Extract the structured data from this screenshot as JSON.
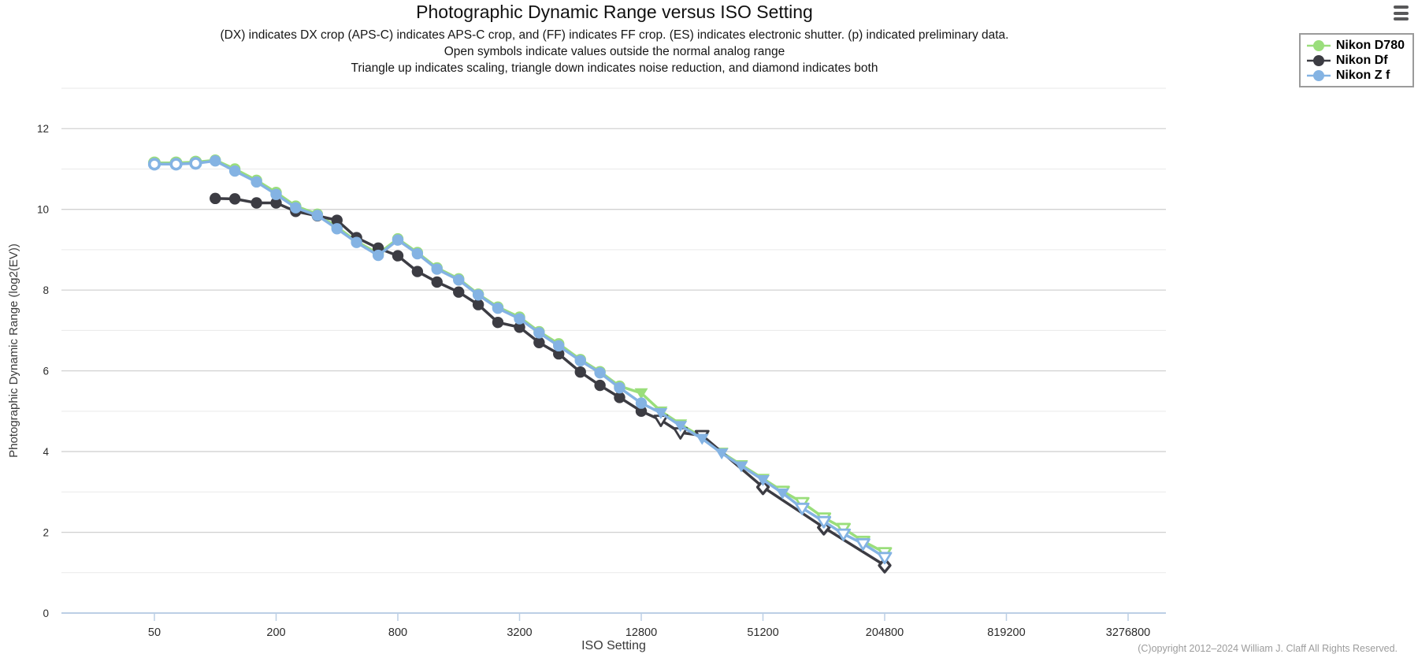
{
  "header": {
    "title": "Photographic Dynamic Range versus ISO Setting",
    "subtitle_lines": [
      "(DX) indicates DX crop (APS-C) indicates APS-C crop, and (FF) indicates FF crop. (ES) indicates electronic shutter. (p) indicated preliminary data.",
      "Open symbols indicate values outside the normal analog range",
      "Triangle up indicates scaling, triangle down indicates noise reduction, and diamond indicates both"
    ]
  },
  "icons": {
    "menu": "hamburger-icon"
  },
  "legend": {
    "items": [
      {
        "label": "Nikon D780",
        "color": "#9ade7b"
      },
      {
        "label": "Nikon Df",
        "color": "#3c3c43"
      },
      {
        "label": "Nikon Z f",
        "color": "#84b3e3"
      }
    ]
  },
  "footer": {
    "copyright": "(C)opyright 2012–2024 William J. Claff All Rights Reserved."
  },
  "colors": {
    "axis_line": "#bccfe5",
    "grid_major": "#d2d2d2",
    "grid_minor": "#e9e9e9",
    "tick_label": "#2b2b2b",
    "axis_title": "#3a3a3a"
  },
  "chart_data": {
    "type": "line",
    "title": "Photographic Dynamic Range versus ISO Setting",
    "xlabel": "ISO Setting",
    "ylabel": "Photographic Dynamic Range (log2(EV))",
    "x_scale": "log2",
    "x_ticks": [
      50,
      200,
      800,
      3200,
      12800,
      51200,
      204800,
      819200,
      3276800
    ],
    "y_ticks": [
      0,
      2,
      4,
      6,
      8,
      10,
      12
    ],
    "ylim": [
      0,
      13
    ],
    "grid": "horizontal-only",
    "legend_position": "top-right",
    "marker_codes": {
      "c": "filled circle (normal analog range)",
      "co": "open circle (outside normal analog range)",
      "t": "filled triangle-down (noise reduction)",
      "to": "open triangle-down (noise reduction, outside analog range)",
      "d": "open diamond (scaling and noise reduction)"
    },
    "series": [
      {
        "name": "Nikon D780",
        "color": "#9ade7b",
        "points": [
          {
            "iso": 50,
            "pdr": 11.15,
            "m": "co"
          },
          {
            "iso": 64,
            "pdr": 11.15,
            "m": "co"
          },
          {
            "iso": 80,
            "pdr": 11.17,
            "m": "co"
          },
          {
            "iso": 100,
            "pdr": 11.22,
            "m": "c"
          },
          {
            "iso": 125,
            "pdr": 11.0,
            "m": "c"
          },
          {
            "iso": 160,
            "pdr": 10.72,
            "m": "c"
          },
          {
            "iso": 200,
            "pdr": 10.42,
            "m": "c"
          },
          {
            "iso": 250,
            "pdr": 10.08,
            "m": "c"
          },
          {
            "iso": 320,
            "pdr": 9.88,
            "m": "c"
          },
          {
            "iso": 400,
            "pdr": 9.56,
            "m": "c"
          },
          {
            "iso": 500,
            "pdr": 9.21,
            "m": "c"
          },
          {
            "iso": 640,
            "pdr": 8.9,
            "m": "c"
          },
          {
            "iso": 800,
            "pdr": 9.27,
            "m": "c"
          },
          {
            "iso": 1000,
            "pdr": 8.93,
            "m": "c"
          },
          {
            "iso": 1250,
            "pdr": 8.55,
            "m": "c"
          },
          {
            "iso": 1600,
            "pdr": 8.28,
            "m": "c"
          },
          {
            "iso": 2000,
            "pdr": 7.9,
            "m": "c"
          },
          {
            "iso": 2500,
            "pdr": 7.58,
            "m": "c"
          },
          {
            "iso": 3200,
            "pdr": 7.33,
            "m": "c"
          },
          {
            "iso": 4000,
            "pdr": 6.97,
            "m": "c"
          },
          {
            "iso": 5000,
            "pdr": 6.67,
            "m": "c"
          },
          {
            "iso": 6400,
            "pdr": 6.28,
            "m": "c"
          },
          {
            "iso": 8000,
            "pdr": 5.98,
            "m": "c"
          },
          {
            "iso": 10000,
            "pdr": 5.62,
            "m": "c"
          },
          {
            "iso": 12800,
            "pdr": 5.45,
            "m": "t"
          },
          {
            "iso": 16000,
            "pdr": 5.0,
            "m": "t"
          },
          {
            "iso": 20000,
            "pdr": 4.68,
            "m": "t"
          },
          {
            "iso": 25600,
            "pdr": 4.35,
            "m": "t"
          },
          {
            "iso": 32000,
            "pdr": 3.98,
            "m": "t"
          },
          {
            "iso": 40000,
            "pdr": 3.67,
            "m": "t"
          },
          {
            "iso": 51200,
            "pdr": 3.33,
            "m": "t"
          },
          {
            "iso": 64000,
            "pdr": 3.02,
            "m": "to"
          },
          {
            "iso": 80000,
            "pdr": 2.74,
            "m": "to"
          },
          {
            "iso": 102400,
            "pdr": 2.36,
            "m": "to"
          },
          {
            "iso": 128000,
            "pdr": 2.1,
            "m": "to"
          },
          {
            "iso": 160000,
            "pdr": 1.78,
            "m": "to"
          },
          {
            "iso": 204800,
            "pdr": 1.5,
            "m": "to"
          }
        ]
      },
      {
        "name": "Nikon Df",
        "color": "#3c3c43",
        "points": [
          {
            "iso": 100,
            "pdr": 10.27,
            "m": "c"
          },
          {
            "iso": 125,
            "pdr": 10.26,
            "m": "c"
          },
          {
            "iso": 160,
            "pdr": 10.16,
            "m": "c"
          },
          {
            "iso": 200,
            "pdr": 10.16,
            "m": "c"
          },
          {
            "iso": 250,
            "pdr": 9.95,
            "m": "c"
          },
          {
            "iso": 320,
            "pdr": 9.84,
            "m": "c"
          },
          {
            "iso": 400,
            "pdr": 9.73,
            "m": "c"
          },
          {
            "iso": 500,
            "pdr": 9.3,
            "m": "c"
          },
          {
            "iso": 640,
            "pdr": 9.04,
            "m": "c"
          },
          {
            "iso": 800,
            "pdr": 8.85,
            "m": "c"
          },
          {
            "iso": 1000,
            "pdr": 8.46,
            "m": "c"
          },
          {
            "iso": 1250,
            "pdr": 8.2,
            "m": "c"
          },
          {
            "iso": 1600,
            "pdr": 7.95,
            "m": "c"
          },
          {
            "iso": 2000,
            "pdr": 7.64,
            "m": "c"
          },
          {
            "iso": 2500,
            "pdr": 7.2,
            "m": "c"
          },
          {
            "iso": 3200,
            "pdr": 7.08,
            "m": "c"
          },
          {
            "iso": 4000,
            "pdr": 6.7,
            "m": "c"
          },
          {
            "iso": 5000,
            "pdr": 6.42,
            "m": "c"
          },
          {
            "iso": 6400,
            "pdr": 5.97,
            "m": "c"
          },
          {
            "iso": 8000,
            "pdr": 5.64,
            "m": "c"
          },
          {
            "iso": 10000,
            "pdr": 5.34,
            "m": "c"
          },
          {
            "iso": 12800,
            "pdr": 5.0,
            "m": "c"
          },
          {
            "iso": 16000,
            "pdr": 4.78,
            "m": "to"
          },
          {
            "iso": 20000,
            "pdr": 4.47,
            "m": "to"
          },
          {
            "iso": 25600,
            "pdr": 4.4,
            "m": "to"
          },
          {
            "iso": 51200,
            "pdr": 3.12,
            "m": "d"
          },
          {
            "iso": 102400,
            "pdr": 2.12,
            "m": "d"
          },
          {
            "iso": 204800,
            "pdr": 1.18,
            "m": "d"
          }
        ]
      },
      {
        "name": "Nikon Z f",
        "color": "#84b3e3",
        "points": [
          {
            "iso": 50,
            "pdr": 11.12,
            "m": "co"
          },
          {
            "iso": 64,
            "pdr": 11.12,
            "m": "co"
          },
          {
            "iso": 80,
            "pdr": 11.14,
            "m": "co"
          },
          {
            "iso": 100,
            "pdr": 11.2,
            "m": "c"
          },
          {
            "iso": 125,
            "pdr": 10.95,
            "m": "c"
          },
          {
            "iso": 160,
            "pdr": 10.68,
            "m": "c"
          },
          {
            "iso": 200,
            "pdr": 10.37,
            "m": "c"
          },
          {
            "iso": 250,
            "pdr": 10.04,
            "m": "c"
          },
          {
            "iso": 320,
            "pdr": 9.85,
            "m": "c"
          },
          {
            "iso": 400,
            "pdr": 9.52,
            "m": "c"
          },
          {
            "iso": 500,
            "pdr": 9.18,
            "m": "c"
          },
          {
            "iso": 640,
            "pdr": 8.86,
            "m": "c"
          },
          {
            "iso": 800,
            "pdr": 9.24,
            "m": "c"
          },
          {
            "iso": 1000,
            "pdr": 8.9,
            "m": "c"
          },
          {
            "iso": 1250,
            "pdr": 8.52,
            "m": "c"
          },
          {
            "iso": 1600,
            "pdr": 8.25,
            "m": "c"
          },
          {
            "iso": 2000,
            "pdr": 7.88,
            "m": "c"
          },
          {
            "iso": 2500,
            "pdr": 7.55,
            "m": "c"
          },
          {
            "iso": 3200,
            "pdr": 7.29,
            "m": "c"
          },
          {
            "iso": 4000,
            "pdr": 6.94,
            "m": "c"
          },
          {
            "iso": 5000,
            "pdr": 6.62,
            "m": "c"
          },
          {
            "iso": 6400,
            "pdr": 6.25,
            "m": "c"
          },
          {
            "iso": 8000,
            "pdr": 5.95,
            "m": "c"
          },
          {
            "iso": 10000,
            "pdr": 5.58,
            "m": "c"
          },
          {
            "iso": 12800,
            "pdr": 5.2,
            "m": "c"
          },
          {
            "iso": 16000,
            "pdr": 4.96,
            "m": "t"
          },
          {
            "iso": 20000,
            "pdr": 4.64,
            "m": "t"
          },
          {
            "iso": 25600,
            "pdr": 4.32,
            "m": "t"
          },
          {
            "iso": 32000,
            "pdr": 3.96,
            "m": "t"
          },
          {
            "iso": 40000,
            "pdr": 3.64,
            "m": "t"
          },
          {
            "iso": 51200,
            "pdr": 3.3,
            "m": "t"
          },
          {
            "iso": 64000,
            "pdr": 2.97,
            "m": "t"
          },
          {
            "iso": 80000,
            "pdr": 2.6,
            "m": "to"
          },
          {
            "iso": 102400,
            "pdr": 2.27,
            "m": "to"
          },
          {
            "iso": 128000,
            "pdr": 1.96,
            "m": "to"
          },
          {
            "iso": 160000,
            "pdr": 1.72,
            "m": "to"
          },
          {
            "iso": 204800,
            "pdr": 1.38,
            "m": "to"
          }
        ]
      }
    ]
  }
}
